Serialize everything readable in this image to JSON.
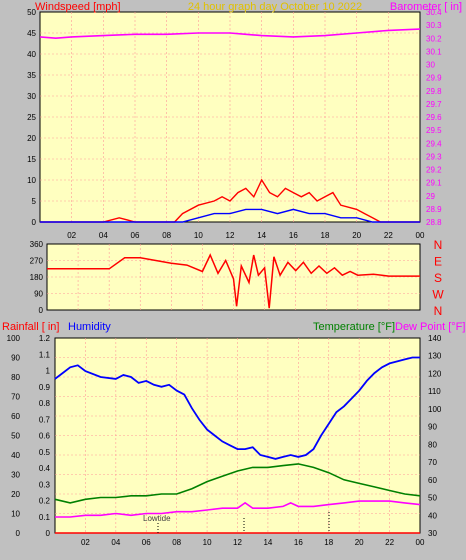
{
  "header": {
    "left_title": "Windspeed [mph]",
    "center_title": "24 hour graph day   October 10 2022",
    "right_title": "Barometer [ in]"
  },
  "hours": [
    "02",
    "04",
    "06",
    "08",
    "10",
    "12",
    "14",
    "16",
    "18",
    "20",
    "22",
    "00"
  ],
  "colors": {
    "plot_bg": "#ffffc0",
    "panel_bg": "#c0c0c0",
    "grid": "#ff9999",
    "wind": "#ff0000",
    "gust": "#0000ff",
    "baro": "#ff00ff",
    "dir": "#ff0000",
    "rain": "#ff0000",
    "humidity": "#0000ff",
    "temp": "#008000",
    "dew": "#ff00ff"
  },
  "wind_axis": [
    "0",
    "5",
    "10",
    "15",
    "20",
    "25",
    "30",
    "35",
    "40",
    "45",
    "50"
  ],
  "baro_axis": [
    "28.8",
    "28.9",
    "29",
    "29.1",
    "29.2",
    "29.3",
    "29.4",
    "29.5",
    "29.6",
    "29.7",
    "29.8",
    "29.9",
    "30",
    "30.1",
    "30.2",
    "30.3",
    "30.4"
  ],
  "dir_axis": [
    "0",
    "90",
    "180",
    "270",
    "360"
  ],
  "compass": [
    "N",
    "W",
    "S",
    "E",
    "N"
  ],
  "bottom_header": {
    "rain_label": "Rainfall [ in]",
    "hum_label": "Humidity",
    "temp_label": "Temperature [°F]",
    "dew_label": "Dew Point [°F]"
  },
  "rain_axis": [
    "0",
    "0.1",
    "0.2",
    "0.3",
    "0.4",
    "0.5",
    "0.6",
    "0.7",
    "0.8",
    "0.9",
    "1",
    "1.1",
    "1.2"
  ],
  "hum_axis": [
    "0",
    "10",
    "20",
    "30",
    "40",
    "50",
    "60",
    "70",
    "80",
    "90",
    "100"
  ],
  "temp_axis": [
    "30",
    "40",
    "50",
    "60",
    "70",
    "80",
    "90",
    "100",
    "110",
    "120",
    "130",
    "140"
  ],
  "annotation": "Lowtide",
  "chart_data": [
    {
      "type": "line",
      "title": "24 hour graph day   October 10 2022",
      "ylabel_left": "Windspeed [mph]",
      "ylabel_right": "Barometer [ in]",
      "x_range_hours": [
        0,
        24
      ],
      "ylim_left": [
        0,
        50
      ],
      "ylim_right": [
        28.8,
        30.4
      ],
      "series": [
        {
          "name": "Windspeed [mph]",
          "x": [
            0,
            2,
            4,
            5,
            6,
            8,
            8.5,
            9,
            10,
            11,
            11.5,
            12,
            12.5,
            13,
            13.5,
            14,
            14.5,
            15,
            15.5,
            16,
            16.5,
            17,
            17.5,
            18,
            18.5,
            19,
            20,
            20.5,
            21,
            21.5,
            22,
            24
          ],
          "y": [
            0,
            0,
            0,
            1,
            0,
            0,
            0,
            2,
            4,
            5,
            6,
            5,
            7,
            8,
            6,
            10,
            7,
            6,
            8,
            7,
            6,
            7,
            5,
            6,
            7,
            4,
            3,
            2,
            1,
            0,
            0,
            0
          ]
        },
        {
          "name": "Gust",
          "x": [
            0,
            9,
            10,
            11,
            12,
            13,
            14,
            15,
            16,
            17,
            18,
            19,
            20,
            21,
            22,
            24
          ],
          "y": [
            0,
            0,
            1,
            2,
            2,
            3,
            3,
            2,
            3,
            2,
            2,
            1,
            1,
            0,
            0,
            0
          ]
        },
        {
          "name": "Barometer [ in]",
          "x": [
            0,
            1,
            2,
            4,
            6,
            8,
            10,
            12,
            13,
            14,
            16,
            18,
            20,
            22,
            24
          ],
          "y": [
            30.21,
            30.2,
            30.21,
            30.22,
            30.23,
            30.23,
            30.24,
            30.24,
            30.23,
            30.22,
            30.21,
            30.22,
            30.24,
            30.26,
            30.27
          ]
        }
      ]
    },
    {
      "type": "line",
      "title": "",
      "ylabel": "Wind direction",
      "x_range_hours": [
        0,
        24
      ],
      "ylim": [
        0,
        360
      ],
      "series": [
        {
          "name": "Direction",
          "x": [
            0,
            4,
            5,
            6,
            7,
            8,
            9,
            10,
            10.5,
            11,
            11.5,
            12,
            12.2,
            12.5,
            13,
            13.3,
            13.6,
            14,
            14.3,
            14.6,
            15,
            15.5,
            16,
            16.5,
            17,
            17.5,
            18,
            18.5,
            19,
            19.5,
            20,
            21,
            22,
            24
          ],
          "y": [
            225,
            225,
            285,
            285,
            270,
            255,
            245,
            210,
            300,
            200,
            270,
            170,
            20,
            240,
            150,
            300,
            190,
            230,
            10,
            290,
            190,
            260,
            215,
            260,
            200,
            240,
            200,
            230,
            190,
            210,
            190,
            195,
            185,
            185
          ]
        }
      ]
    },
    {
      "type": "line",
      "title": "",
      "ylabel_left_outer": "Rainfall [ in]",
      "ylabel_left_inner": "Humidity",
      "ylabel_right": "Temperature [°F] / Dew Point [°F]",
      "x_range_hours": [
        0,
        24
      ],
      "ylim_rain": [
        0,
        1.2
      ],
      "ylim_humidity": [
        0,
        100
      ],
      "ylim_temp": [
        30,
        140
      ],
      "series": [
        {
          "name": "Rainfall [ in]",
          "x": [
            0,
            24
          ],
          "y": [
            0,
            0
          ]
        },
        {
          "name": "Humidity",
          "x": [
            0,
            0.5,
            1,
            1.5,
            2,
            3,
            4,
            4.5,
            5,
            5.5,
            6,
            6.5,
            7,
            7.5,
            8,
            8.5,
            9,
            9.5,
            10,
            10.5,
            11,
            11.5,
            12,
            12.5,
            13,
            13.5,
            14,
            14.5,
            15,
            15.5,
            16,
            16.5,
            17,
            17.5,
            18,
            18.5,
            19,
            19.5,
            20,
            20.5,
            21,
            21.5,
            22,
            22.5,
            23,
            23.5,
            24
          ],
          "y": [
            79,
            82,
            85,
            86,
            83,
            80,
            79,
            81,
            80,
            77,
            78,
            76,
            75,
            76,
            73,
            71,
            64,
            58,
            53,
            50,
            47,
            45,
            43,
            43,
            44,
            40,
            39,
            38,
            39,
            40,
            39,
            40,
            43,
            50,
            56,
            62,
            65,
            69,
            73,
            78,
            82,
            85,
            87,
            88,
            89,
            90,
            90
          ]
        },
        {
          "name": "Temperature [°F]",
          "x": [
            0,
            1,
            2,
            3,
            4,
            5,
            6,
            7,
            8,
            9,
            10,
            11,
            12,
            13,
            14,
            15,
            16,
            17,
            18,
            19,
            20,
            21,
            22,
            23,
            24
          ],
          "y": [
            49,
            47,
            49,
            50,
            50,
            51,
            51,
            52,
            52,
            55,
            59,
            62,
            65,
            67,
            67,
            68,
            69,
            67,
            64,
            60,
            58,
            56,
            54,
            52,
            51
          ]
        },
        {
          "name": "Dew Point [°F]",
          "x": [
            0,
            1,
            2,
            3,
            4,
            5,
            6,
            7,
            8,
            9,
            10,
            11,
            12,
            12.5,
            13,
            14,
            15,
            15.5,
            16,
            17,
            18,
            19,
            20,
            21,
            22,
            23,
            24
          ],
          "y": [
            39,
            39,
            40,
            40,
            41,
            40,
            41,
            41,
            42,
            42,
            43,
            44,
            44,
            47,
            44,
            44,
            45,
            47,
            45,
            45,
            46,
            47,
            48,
            48,
            48,
            47,
            46
          ]
        }
      ]
    }
  ]
}
